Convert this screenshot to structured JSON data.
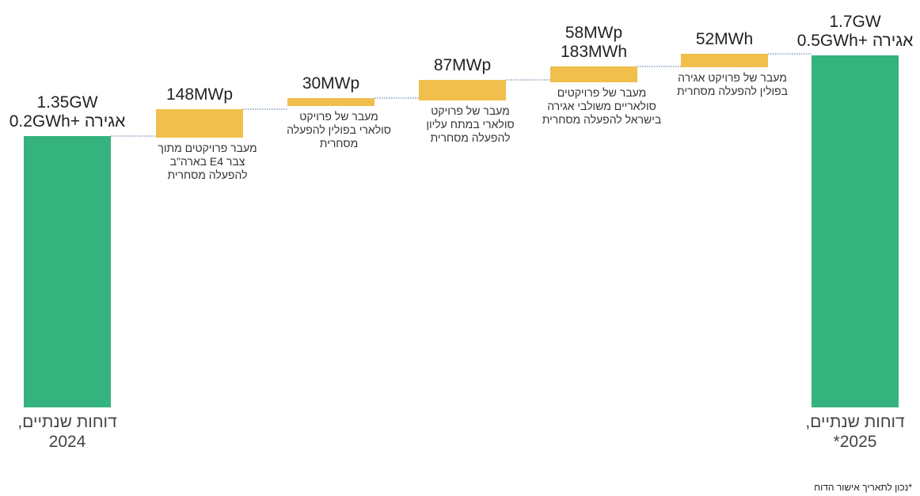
{
  "chart_data": {
    "type": "bar",
    "subtype": "waterfall",
    "unit": "GW",
    "colors": {
      "total": "#35b37e",
      "increase": "#f0bf4c",
      "connector": "#4a6fa5"
    },
    "categories": [
      "2024 totals",
      "E4",
      "Poland 30",
      "Poland 87",
      "Israel",
      "Poland storage",
      "2025 totals"
    ],
    "values": [
      1.35,
      0.148,
      0.03,
      0.087,
      0.058,
      0.052,
      1.7
    ],
    "measure": [
      "absolute",
      "relative",
      "relative",
      "relative",
      "relative",
      "relative",
      "absolute"
    ],
    "ylim": [
      0,
      1.75
    ],
    "bars": [
      {
        "value_labels": [
          "1.35GW",
          "אגירה +0.2GWh"
        ],
        "axis_label": "דוחות שנתיים,\n2024"
      },
      {
        "value_labels": [
          "148MWp"
        ],
        "caption": "מעבר פרויקטים מתוך\nצבר E4 בארה\"ב\nלהפעלה מסחרית"
      },
      {
        "value_labels": [
          "30MWp"
        ],
        "caption": "מעבר של פרויקט\nסולארי בפולין להפעלה\nמסחרית"
      },
      {
        "value_labels": [
          "87MWp"
        ],
        "caption": "מעבר של פרויקט\nסולארי במתח עליון\nלהפעלה מסחרית"
      },
      {
        "value_labels": [
          "58MWp",
          "183MWh"
        ],
        "caption": "מעבר של פרויקטים\nסולאריים משולבי אגירה\nבישראל להפעלה מסחרית"
      },
      {
        "value_labels": [
          "52MWh"
        ],
        "caption": "מעבר של פרויקט אגירה\nבפולין להפעלה מסחרית"
      },
      {
        "value_labels": [
          "1.7GW",
          "אגירה +0.5GWh"
        ],
        "axis_label": "דוחות שנתיים,\n2025*"
      }
    ]
  },
  "footnote": "*נכון לתאריך אישור הדוח"
}
